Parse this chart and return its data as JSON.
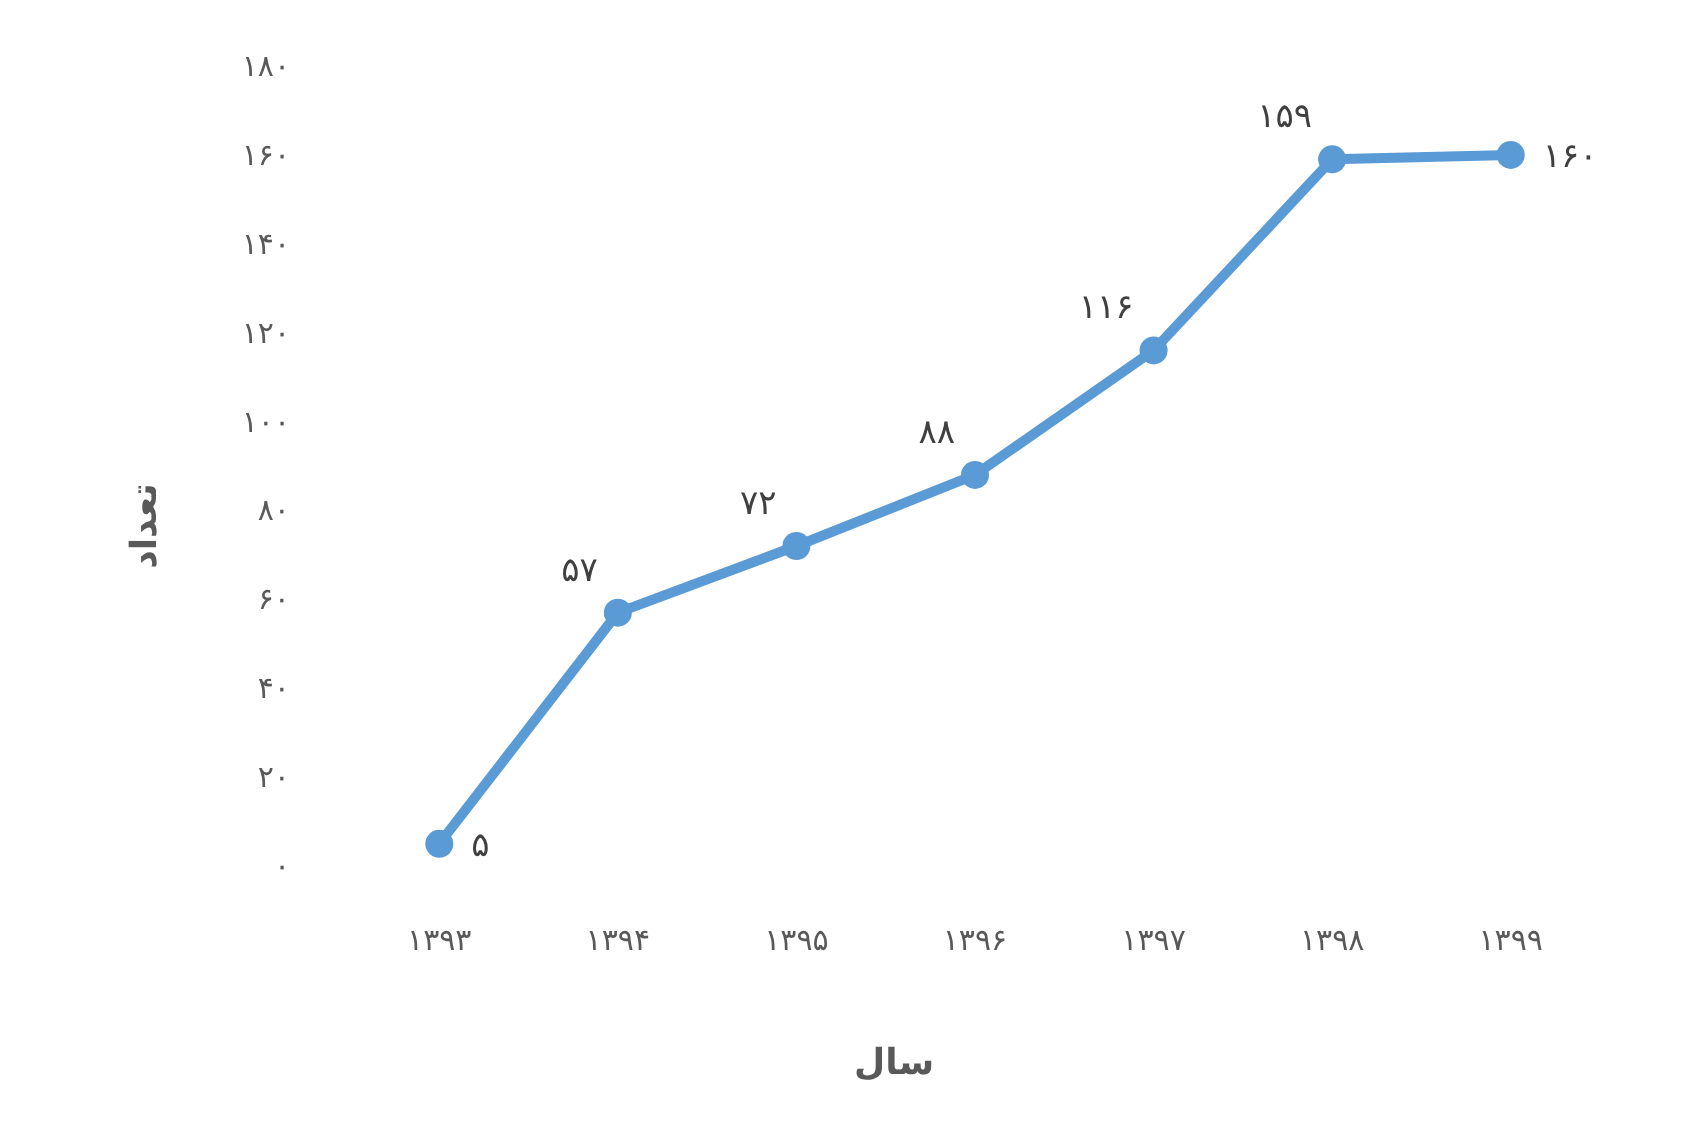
{
  "chart_data": {
    "type": "line",
    "xlabel": "سال",
    "ylabel": "تعداد",
    "categories": [
      "۱۳۹۳",
      "۱۳۹۴",
      "۱۳۹۵",
      "۱۳۹۶",
      "۱۳۹۷",
      "۱۳۹۸",
      "۱۳۹۹"
    ],
    "series": [
      {
        "color": "#5b9bd5",
        "values": [
          5,
          57,
          72,
          88,
          116,
          159,
          160
        ],
        "value_labels": [
          "۵",
          "۵۷",
          "۷۲",
          "۸۸",
          "۱۱۶",
          "۱۵۹",
          "۱۶۰"
        ]
      }
    ],
    "ylim": [
      0,
      180
    ],
    "yticks": [
      {
        "value": 0,
        "label": "۰"
      },
      {
        "value": 20,
        "label": "۲۰"
      },
      {
        "value": 40,
        "label": "۴۰"
      },
      {
        "value": 60,
        "label": "۶۰"
      },
      {
        "value": 80,
        "label": "۸۰"
      },
      {
        "value": 100,
        "label": "۱۰۰"
      },
      {
        "value": 120,
        "label": "۱۲۰"
      },
      {
        "value": 140,
        "label": "۱۴۰"
      },
      {
        "value": 160,
        "label": "۱۶۰"
      },
      {
        "value": 180,
        "label": "۱۸۰"
      }
    ],
    "grid": false,
    "marker": "circle",
    "line_style": "solid"
  }
}
